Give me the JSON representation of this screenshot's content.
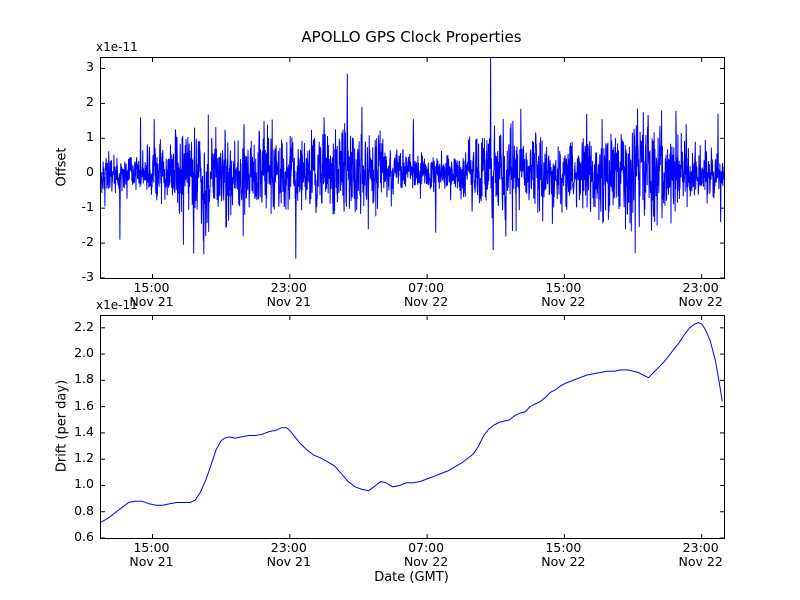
{
  "figure": {
    "title": "APOLLO GPS Clock Properties",
    "xlabel": "Date (GMT)",
    "line_color": "#0000ff",
    "axes_color": "#000000",
    "background_color": "#ffffff"
  },
  "chart_data": [
    {
      "type": "line",
      "name": "offset",
      "title": "APOLLO GPS Clock Properties",
      "ylabel": "Offset",
      "offset_text": "x1e-11",
      "y_units": "1e-11",
      "xlim": [
        12.0,
        48.3
      ],
      "ylim": [
        -3,
        3.3
      ],
      "grid": false,
      "legend": "none",
      "line_color": "#0000ff",
      "yticks": [
        {
          "v": -3,
          "label": "-3"
        },
        {
          "v": -2,
          "label": "-2"
        },
        {
          "v": -1,
          "label": "-1"
        },
        {
          "v": 0,
          "label": "0"
        },
        {
          "v": 1,
          "label": "1"
        },
        {
          "v": 2,
          "label": "2"
        },
        {
          "v": 3,
          "label": "3"
        }
      ],
      "xticks": [
        {
          "hour": 15,
          "label": "15:00",
          "sublabel": "Nov 21"
        },
        {
          "hour": 23,
          "label": "23:00",
          "sublabel": "Nov 21"
        },
        {
          "hour": 31,
          "label": "07:00",
          "sublabel": "Nov 22"
        },
        {
          "hour": 39,
          "label": "15:00",
          "sublabel": "Nov 22"
        },
        {
          "hour": 47,
          "label": "23:00",
          "sublabel": "Nov 22"
        }
      ],
      "series_spec": {
        "kind": "noise",
        "description": "dense zero-mean noise band, mostly within +/-1.5e-11, with sharp outlier spikes",
        "mean": 0,
        "std": 0.62,
        "seed": 42,
        "points_per_hour": 80,
        "notable_points": [
          {
            "x": 13.1,
            "v": -1.9
          },
          {
            "x": 14.3,
            "v": 1.6
          },
          {
            "x": 15.1,
            "v": 1.55
          },
          {
            "x": 16.8,
            "v": -2.05
          },
          {
            "x": 17.4,
            "v": -2.3
          },
          {
            "x": 18.1,
            "v": -1.8
          },
          {
            "x": 21.5,
            "v": 1.5
          },
          {
            "x": 23.35,
            "v": -2.45
          },
          {
            "x": 25.0,
            "v": 1.6
          },
          {
            "x": 26.35,
            "v": 2.85
          },
          {
            "x": 27.2,
            "v": 1.9
          },
          {
            "x": 30.2,
            "v": 1.55
          },
          {
            "x": 31.5,
            "v": -1.7
          },
          {
            "x": 34.7,
            "v": 3.3
          },
          {
            "x": 34.85,
            "v": -2.2
          },
          {
            "x": 36.0,
            "v": 1.5
          },
          {
            "x": 38.3,
            "v": -1.45
          },
          {
            "x": 40.3,
            "v": 1.7
          },
          {
            "x": 41.2,
            "v": 1.55
          },
          {
            "x": 43.6,
            "v": 1.75
          },
          {
            "x": 44.4,
            "v": -1.5
          },
          {
            "x": 46.1,
            "v": 1.4
          },
          {
            "x": 47.95,
            "v": 1.7
          },
          {
            "x": 48.1,
            "v": -1.4
          }
        ]
      }
    },
    {
      "type": "line",
      "name": "drift",
      "ylabel": "Drift (per day)",
      "xlabel": "Date (GMT)",
      "offset_text": "x1e-11",
      "y_units": "1e-11",
      "xlim": [
        12.0,
        48.3
      ],
      "ylim": [
        0.6,
        2.29
      ],
      "grid": false,
      "legend": "none",
      "line_color": "#0000ff",
      "yticks": [
        {
          "v": 0.6,
          "label": "0.6"
        },
        {
          "v": 0.8,
          "label": "0.8"
        },
        {
          "v": 1.0,
          "label": "1.0"
        },
        {
          "v": 1.2,
          "label": "1.2"
        },
        {
          "v": 1.4,
          "label": "1.4"
        },
        {
          "v": 1.6,
          "label": "1.6"
        },
        {
          "v": 1.8,
          "label": "1.8"
        },
        {
          "v": 2.0,
          "label": "2.0"
        },
        {
          "v": 2.2,
          "label": "2.2"
        }
      ],
      "xticks": [
        {
          "hour": 15,
          "label": "15:00",
          "sublabel": "Nov 21"
        },
        {
          "hour": 23,
          "label": "23:00",
          "sublabel": "Nov 21"
        },
        {
          "hour": 31,
          "label": "07:00",
          "sublabel": "Nov 22"
        },
        {
          "hour": 39,
          "label": "15:00",
          "sublabel": "Nov 22"
        },
        {
          "hour": 47,
          "label": "23:00",
          "sublabel": "Nov 22"
        }
      ],
      "points": [
        [
          12.0,
          0.72
        ],
        [
          12.4,
          0.75
        ],
        [
          12.8,
          0.79
        ],
        [
          13.2,
          0.83
        ],
        [
          13.6,
          0.87
        ],
        [
          14.0,
          0.88
        ],
        [
          14.4,
          0.88
        ],
        [
          14.8,
          0.86
        ],
        [
          15.2,
          0.85
        ],
        [
          15.6,
          0.85
        ],
        [
          16.0,
          0.86
        ],
        [
          16.4,
          0.87
        ],
        [
          16.8,
          0.87
        ],
        [
          17.2,
          0.87
        ],
        [
          17.5,
          0.89
        ],
        [
          17.8,
          0.95
        ],
        [
          18.1,
          1.04
        ],
        [
          18.4,
          1.15
        ],
        [
          18.7,
          1.27
        ],
        [
          19.0,
          1.34
        ],
        [
          19.2,
          1.36
        ],
        [
          19.5,
          1.37
        ],
        [
          19.8,
          1.36
        ],
        [
          20.2,
          1.37
        ],
        [
          20.6,
          1.38
        ],
        [
          21.0,
          1.38
        ],
        [
          21.4,
          1.39
        ],
        [
          21.8,
          1.41
        ],
        [
          22.2,
          1.42
        ],
        [
          22.5,
          1.44
        ],
        [
          22.8,
          1.44
        ],
        [
          23.0,
          1.42
        ],
        [
          23.3,
          1.37
        ],
        [
          23.6,
          1.32
        ],
        [
          24.0,
          1.27
        ],
        [
          24.4,
          1.23
        ],
        [
          24.8,
          1.21
        ],
        [
          25.2,
          1.18
        ],
        [
          25.6,
          1.15
        ],
        [
          26.0,
          1.09
        ],
        [
          26.4,
          1.03
        ],
        [
          26.8,
          0.99
        ],
        [
          27.2,
          0.97
        ],
        [
          27.6,
          0.96
        ],
        [
          28.0,
          1.0
        ],
        [
          28.3,
          1.03
        ],
        [
          28.6,
          1.02
        ],
        [
          29.0,
          0.99
        ],
        [
          29.4,
          1.0
        ],
        [
          29.8,
          1.02
        ],
        [
          30.2,
          1.02
        ],
        [
          30.6,
          1.03
        ],
        [
          31.0,
          1.05
        ],
        [
          31.4,
          1.07
        ],
        [
          31.8,
          1.09
        ],
        [
          32.2,
          1.11
        ],
        [
          32.6,
          1.14
        ],
        [
          33.0,
          1.17
        ],
        [
          33.4,
          1.21
        ],
        [
          33.7,
          1.24
        ],
        [
          34.0,
          1.3
        ],
        [
          34.3,
          1.38
        ],
        [
          34.6,
          1.43
        ],
        [
          34.9,
          1.46
        ],
        [
          35.2,
          1.48
        ],
        [
          35.5,
          1.49
        ],
        [
          35.8,
          1.5
        ],
        [
          36.1,
          1.53
        ],
        [
          36.4,
          1.55
        ],
        [
          36.7,
          1.56
        ],
        [
          37.0,
          1.6
        ],
        [
          37.3,
          1.62
        ],
        [
          37.6,
          1.64
        ],
        [
          37.9,
          1.67
        ],
        [
          38.2,
          1.71
        ],
        [
          38.5,
          1.73
        ],
        [
          38.8,
          1.76
        ],
        [
          39.1,
          1.78
        ],
        [
          39.5,
          1.8
        ],
        [
          39.9,
          1.82
        ],
        [
          40.3,
          1.84
        ],
        [
          40.7,
          1.85
        ],
        [
          41.1,
          1.86
        ],
        [
          41.5,
          1.87
        ],
        [
          41.9,
          1.87
        ],
        [
          42.3,
          1.88
        ],
        [
          42.7,
          1.88
        ],
        [
          43.0,
          1.87
        ],
        [
          43.3,
          1.86
        ],
        [
          43.6,
          1.84
        ],
        [
          43.9,
          1.82
        ],
        [
          44.2,
          1.86
        ],
        [
          44.5,
          1.9
        ],
        [
          44.8,
          1.94
        ],
        [
          45.1,
          1.99
        ],
        [
          45.4,
          2.04
        ],
        [
          45.7,
          2.09
        ],
        [
          46.0,
          2.15
        ],
        [
          46.3,
          2.2
        ],
        [
          46.6,
          2.23
        ],
        [
          46.8,
          2.24
        ],
        [
          47.0,
          2.23
        ],
        [
          47.2,
          2.19
        ],
        [
          47.5,
          2.1
        ],
        [
          47.8,
          1.95
        ],
        [
          48.0,
          1.8
        ],
        [
          48.2,
          1.64
        ]
      ]
    }
  ]
}
